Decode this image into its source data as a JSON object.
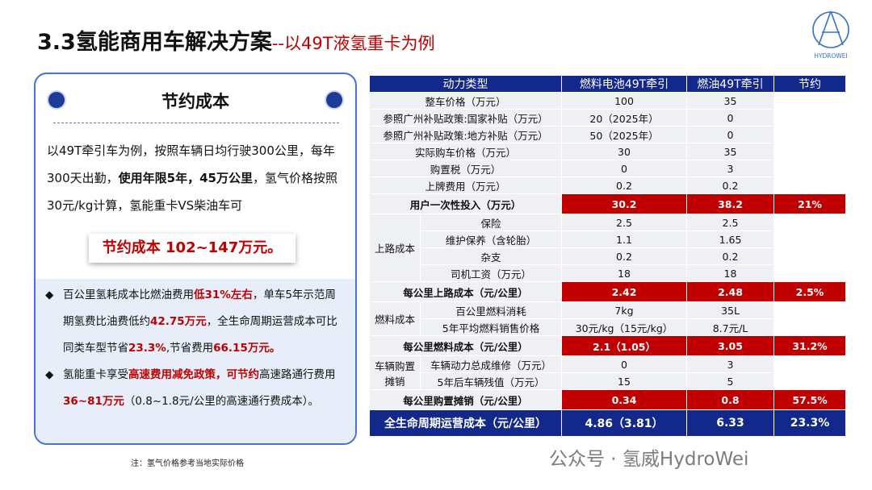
{
  "header": {
    "title": "3.3氢能商用车解决方案",
    "subtitle": "--以49T液氢重卡为例"
  },
  "logo": {
    "text": "HYDROWEI"
  },
  "panel": {
    "heading": "节约成本",
    "paragraph": [
      {
        "text": "以49T牵引车为例，按照车辆日均行驶300公里，每年300天出勤，"
      },
      {
        "text": "使用年限5年，45万公里",
        "bold": true
      },
      {
        "text": "，氢气价格按照30元/kg计算，氢能重卡VS柴油车可"
      }
    ],
    "highlight": "节约成本 102~147万元。",
    "bullets": [
      [
        {
          "text": "百公里氢耗成本比燃油费用"
        },
        {
          "text": "低31%左右",
          "red": true
        },
        {
          "text": "，单车5年示范周期氢费比油费低约"
        },
        {
          "text": "42.75万元",
          "red": true
        },
        {
          "text": "，全生命周期运营成本可比同类车型节省"
        },
        {
          "text": "23.3%",
          "red": true
        },
        {
          "text": ",节省费用"
        },
        {
          "text": "66.15万元。",
          "red": true
        }
      ],
      [
        {
          "text": "氢能重卡享受"
        },
        {
          "text": "高速费用减免政策，可节约",
          "red": true
        },
        {
          "text": "高速路通行费用"
        },
        {
          "text": "36~81万元",
          "red": true
        },
        {
          "text": "（0.8~1.8元/公里的高速通行费成本）。"
        }
      ]
    ]
  },
  "note": "注：氢气价格参考当地实际价格",
  "table": {
    "columns": [
      "动力类型",
      "燃料电池49T牵引",
      "燃油49T牵引",
      "节约"
    ],
    "sections": [
      {
        "rows": [
          {
            "label": "整车价格（万元）",
            "values": [
              "100",
              "35"
            ]
          },
          {
            "label": "参照广州补贴政策:国家补贴（万元）",
            "values": [
              "20（2025年）",
              "0"
            ]
          },
          {
            "label": "参照广州补贴政策:地方补贴（万元）",
            "values": [
              "50（2025年）",
              "0"
            ]
          },
          {
            "label": "实际购车价格（万元）",
            "values": [
              "30",
              "35"
            ]
          },
          {
            "label": "购置税（万元）",
            "values": [
              "0",
              "3"
            ]
          },
          {
            "label": "上牌费用（万元）",
            "values": [
              "0.2",
              "0.2"
            ]
          }
        ],
        "subtotal": {
          "label": "用户一次性投入（万元）",
          "values": [
            "30.2",
            "38.2",
            "21%"
          ]
        }
      },
      {
        "group": "上路成本",
        "rows": [
          {
            "label": "保险",
            "values": [
              "2.5",
              "2.5"
            ]
          },
          {
            "label": "维护保养（含轮胎）",
            "values": [
              "1.1",
              "1.65"
            ]
          },
          {
            "label": "杂支",
            "values": [
              "0.2",
              "0.2"
            ]
          },
          {
            "label": "司机工资（万元）",
            "values": [
              "18",
              "18"
            ]
          }
        ],
        "subtotal": {
          "label": "每公里上路成本（元/公里）",
          "values": [
            "2.42",
            "2.48",
            "2.5%"
          ]
        }
      },
      {
        "group": "燃料成本",
        "rows": [
          {
            "label": "百公里燃料消耗",
            "values": [
              "7kg",
              "35L"
            ]
          },
          {
            "label": "5年平均燃料销售价格",
            "values": [
              "30元/kg（15元/kg）",
              "8.7元/L"
            ]
          }
        ],
        "subtotal": {
          "label": "每公里燃料成本（元/公里）",
          "values": [
            "2.1（1.05）",
            "3.05",
            "31.2%"
          ]
        }
      },
      {
        "group": "车辆购置摊销",
        "rows": [
          {
            "label": "车辆动力总成维修（万元）",
            "values": [
              "0",
              "3"
            ]
          },
          {
            "label": "5年后车辆残值（万元）",
            "values": [
              "15",
              "5"
            ]
          }
        ],
        "subtotal": {
          "label": "每公里购置摊销（元/公里）",
          "values": [
            "0.34",
            "0.8",
            "57.5%"
          ]
        }
      }
    ],
    "total": {
      "label": "全生命周期运营成本（元/公里）",
      "values": [
        "4.86（3.81）",
        "6.33",
        "23.3%"
      ]
    }
  },
  "watermark": "公众号 · 氢威HydroWei"
}
